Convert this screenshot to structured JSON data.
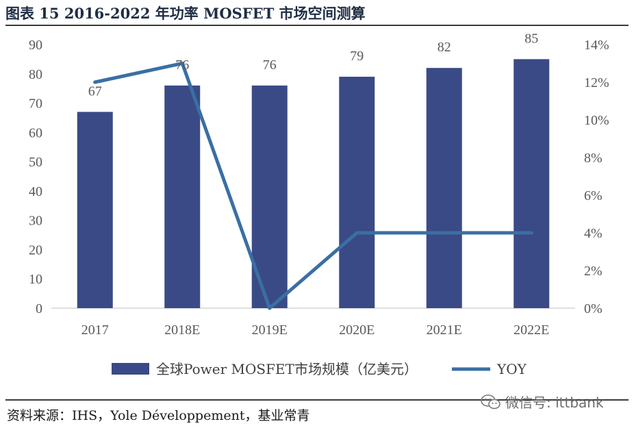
{
  "header": {
    "title": "图表 15 2016-2022 年功率 MOSFET 市场空间测算"
  },
  "footer": {
    "source": "资料来源：IHS，Yole Développement，基业常青",
    "watermark": "微信号: ittbank"
  },
  "colors": {
    "bar": "#3a4a86",
    "line": "#3a6fa3",
    "text": "#595959"
  },
  "chart_data": {
    "type": "bar",
    "categories": [
      "2017",
      "2018E",
      "2019E",
      "2020E",
      "2021E",
      "2022E"
    ],
    "series": [
      {
        "name": "全球Power MOSFET市场规模（亿美元）",
        "kind": "bar",
        "axis": "left",
        "values": [
          67,
          76,
          76,
          79,
          82,
          85
        ]
      },
      {
        "name": "YOY",
        "kind": "line",
        "axis": "right",
        "values": [
          12.0,
          13.0,
          0.0,
          4.0,
          4.0,
          4.0
        ]
      }
    ],
    "data_labels": [
      "67",
      "76",
      "76",
      "79",
      "82",
      "85"
    ],
    "y_left": {
      "min": 0,
      "max": 90,
      "step": 10,
      "ticks": [
        "0",
        "10",
        "20",
        "30",
        "40",
        "50",
        "60",
        "70",
        "80",
        "90"
      ]
    },
    "y_right": {
      "min": 0,
      "max": 14,
      "step": 2,
      "ticks": [
        "0%",
        "2%",
        "4%",
        "6%",
        "8%",
        "10%",
        "12%",
        "14%"
      ]
    },
    "legend_position": "bottom",
    "grid": false
  }
}
